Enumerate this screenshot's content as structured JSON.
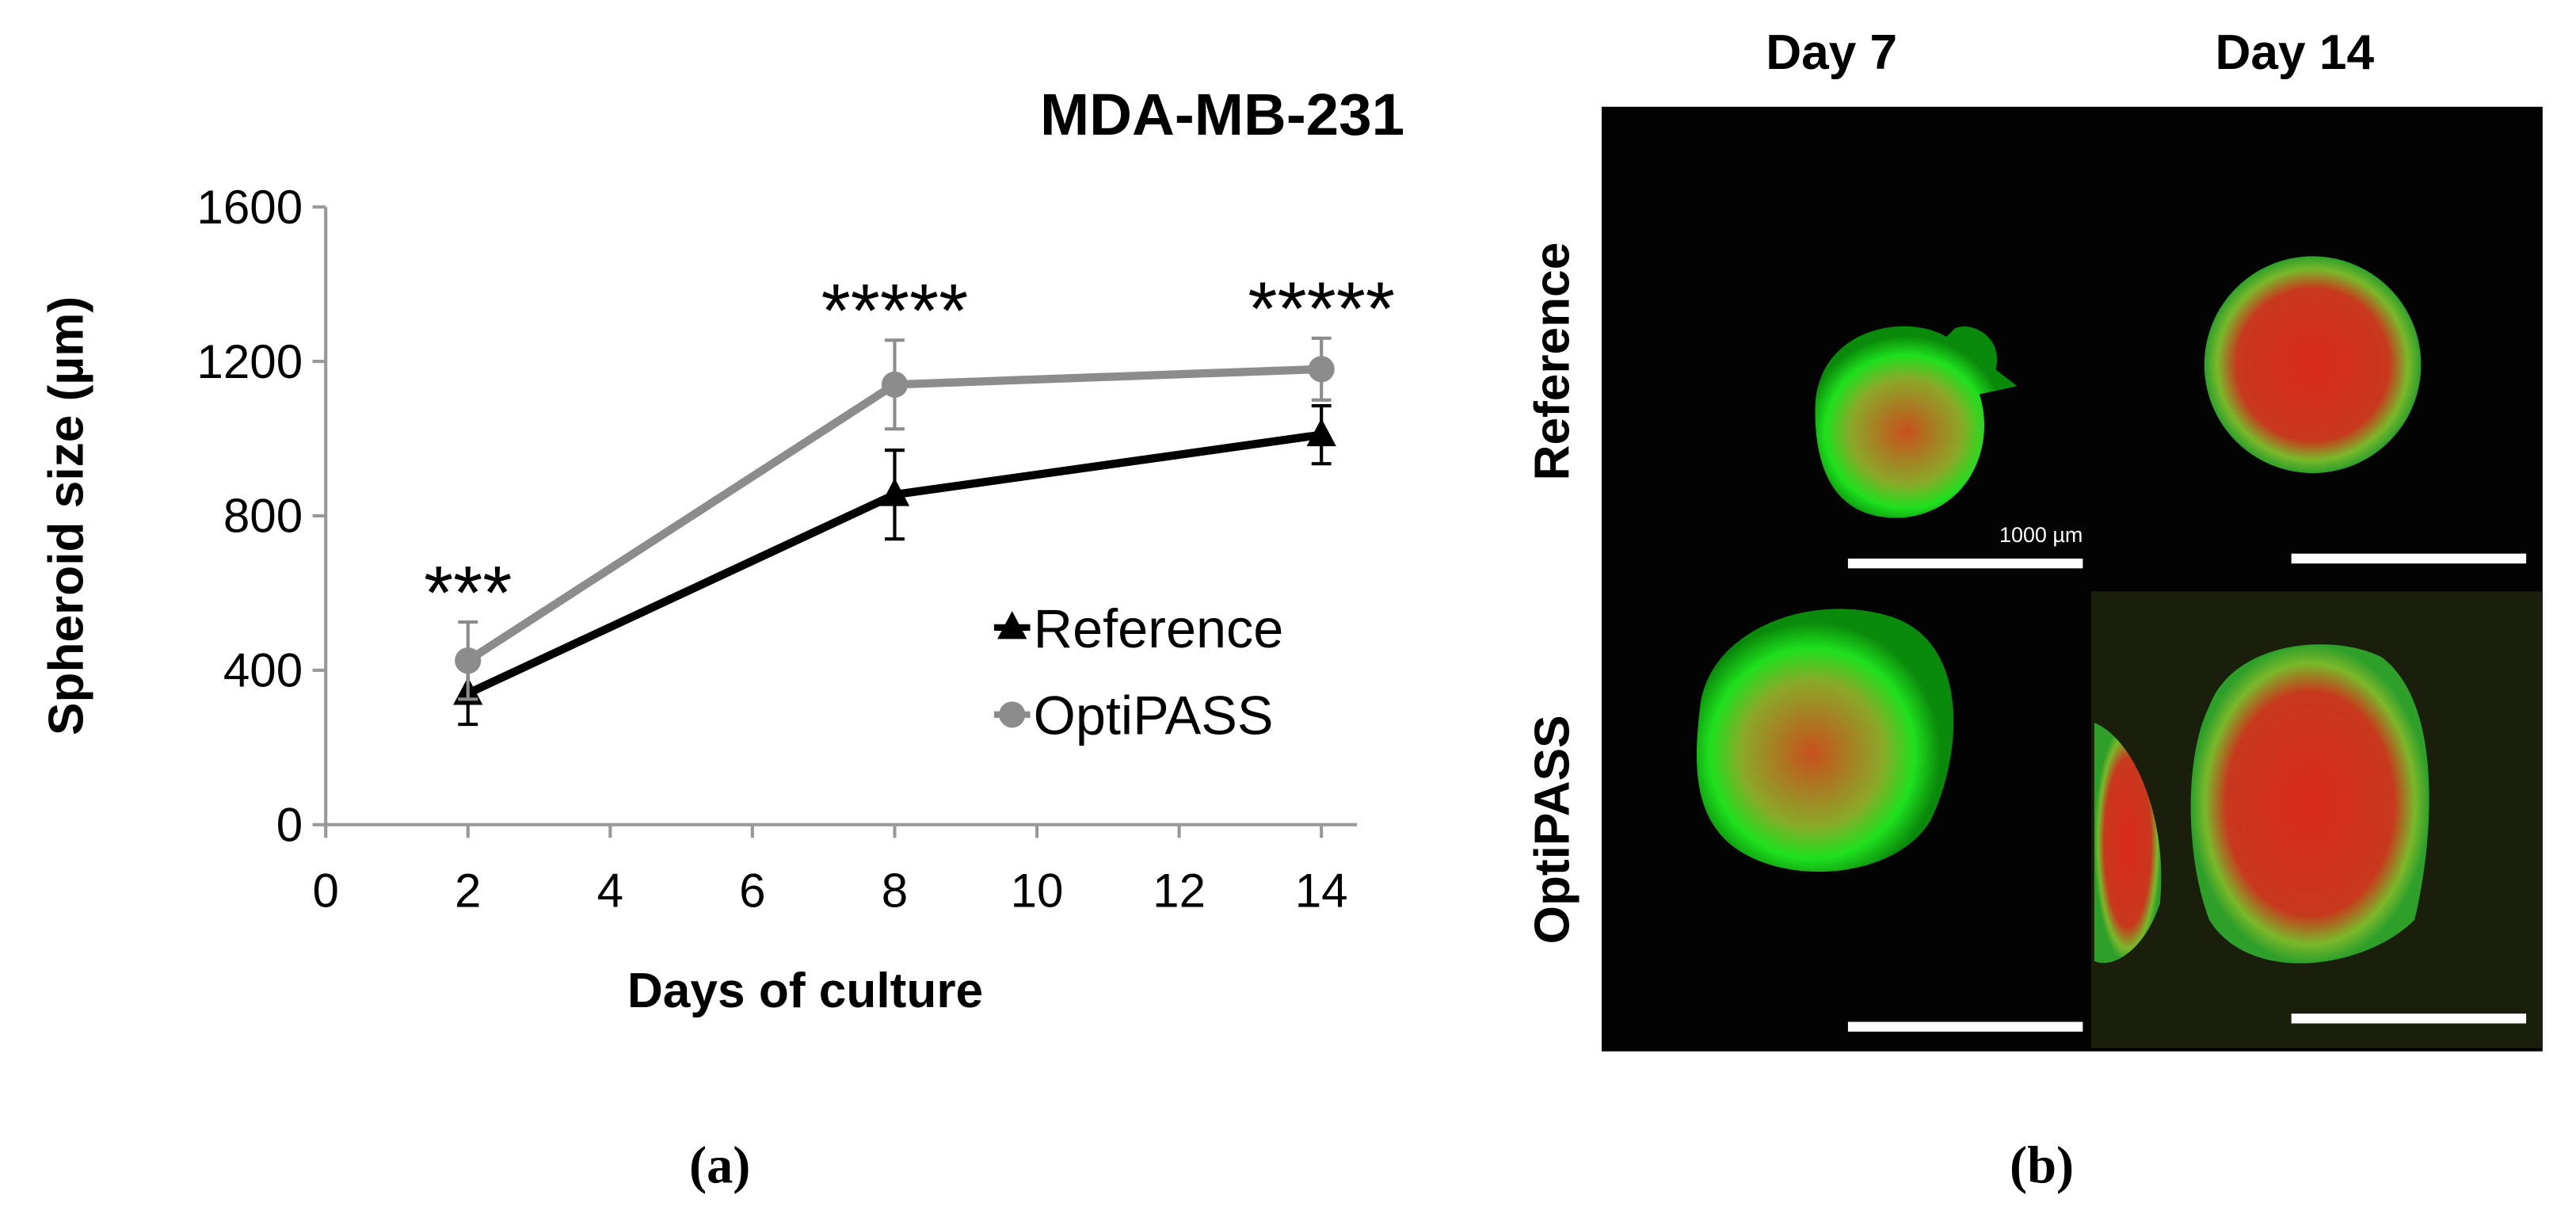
{
  "chart_data": {
    "type": "line",
    "title": "MDA-MB-231",
    "xlabel": "Days of culture",
    "ylabel": "Spheroid size (µm)",
    "x": [
      2,
      8,
      14
    ],
    "series": [
      {
        "name": "Reference",
        "color": "#000000",
        "marker": "triangle",
        "values": [
          340,
          855,
          1010
        ],
        "errors": [
          80,
          115,
          75
        ]
      },
      {
        "name": "OptiPASS",
        "color": "#8c8c8c",
        "marker": "circle",
        "values": [
          425,
          1140,
          1180
        ],
        "errors": [
          100,
          115,
          80
        ]
      }
    ],
    "annotations": [
      {
        "text": "***",
        "x": 2
      },
      {
        "text": "*****",
        "x": 8
      },
      {
        "text": "*****",
        "x": 14
      }
    ],
    "xlim": [
      0,
      14.5
    ],
    "xticks": [
      0,
      2,
      4,
      6,
      8,
      10,
      12,
      14
    ],
    "ylim": [
      0,
      1600
    ],
    "yticks": [
      0,
      400,
      800,
      1200,
      1600
    ],
    "grid": false,
    "legend": "right"
  },
  "panel_b": {
    "columns": [
      "Day 7",
      "Day 14"
    ],
    "rows": [
      "Reference",
      "OptiPASS"
    ],
    "scale_label": "1000 µm"
  },
  "panel_labels": [
    "(a)",
    "(b)"
  ]
}
